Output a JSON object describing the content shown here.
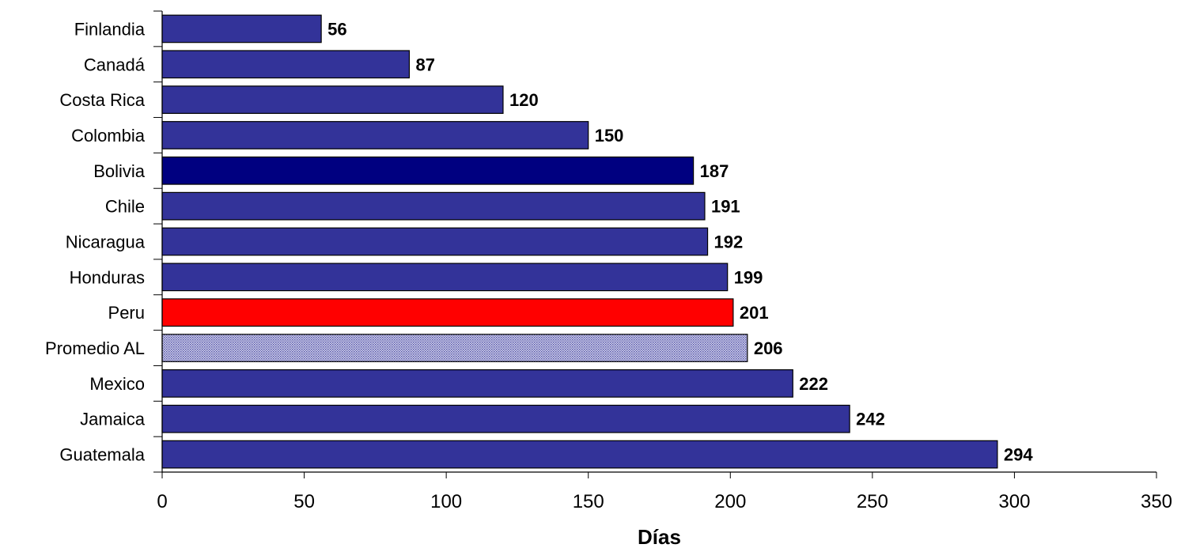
{
  "chart_data": {
    "type": "bar",
    "orientation": "horizontal",
    "categories": [
      "Finlandia",
      "Canadá",
      "Costa Rica",
      "Colombia",
      "Bolivia",
      "Chile",
      "Nicaragua",
      "Honduras",
      "Peru",
      "Promedio AL",
      "Mexico",
      "Jamaica",
      "Guatemala"
    ],
    "values": [
      56,
      87,
      120,
      150,
      187,
      191,
      192,
      199,
      201,
      206,
      222,
      242,
      294
    ],
    "data_labels": [
      "56",
      "87",
      "120",
      "150",
      "187",
      "191",
      "192",
      "199",
      "201",
      "206",
      "222",
      "242",
      "294"
    ],
    "bar_colors": [
      "#333399",
      "#333399",
      "#333399",
      "#333399",
      "#000080",
      "#333399",
      "#333399",
      "#333399",
      "#FF0000",
      "#9999CC",
      "#333399",
      "#333399",
      "#333399"
    ],
    "highlight_pattern": {
      "Promedio AL": "dotted-light-blue"
    },
    "xlabel": "Días",
    "ylabel": "",
    "title": "",
    "xlim": [
      0,
      350
    ],
    "xticks": [
      0,
      50,
      100,
      150,
      200,
      250,
      300,
      350
    ],
    "xtick_labels": [
      "0",
      "50",
      "100",
      "150",
      "200",
      "250",
      "300",
      "350"
    ],
    "grid": false,
    "legend": "none"
  }
}
